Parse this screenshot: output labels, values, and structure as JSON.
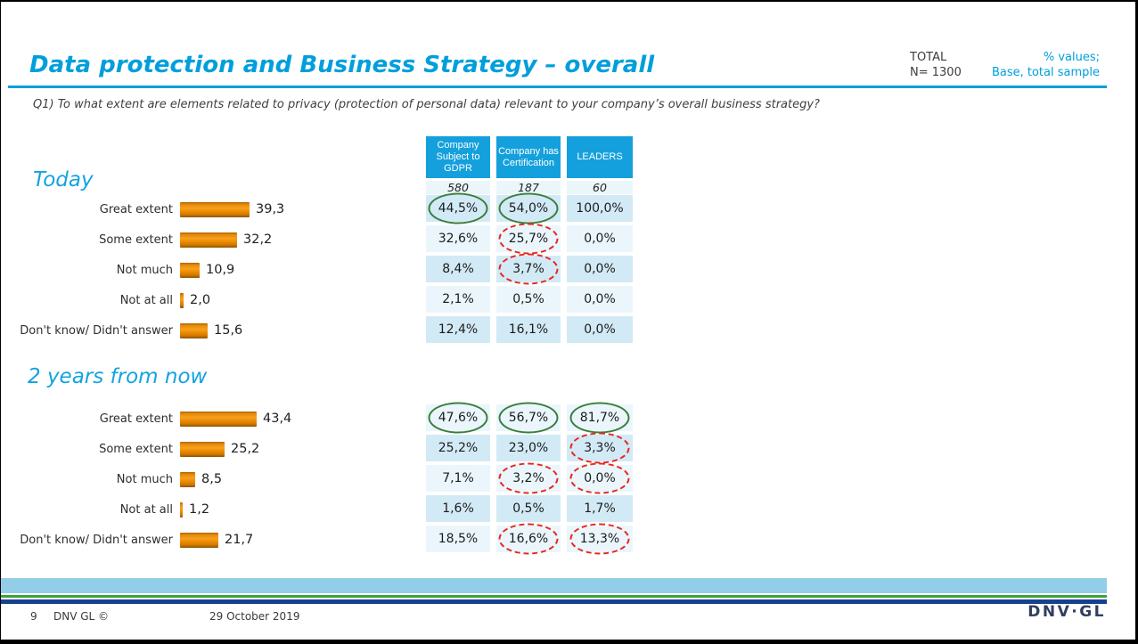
{
  "header": {
    "title": "Data protection and Business Strategy – overall",
    "total_label": "TOTAL",
    "total_value": "N= 1300",
    "note_line1": "% values;",
    "note_line2": "Base, total sample"
  },
  "question": "Q1) To what extent are elements related to privacy (protection of personal data) relevant to your company’s overall business strategy?",
  "columns": [
    {
      "label": "Company Subject to GDPR",
      "base": "580"
    },
    {
      "label": "Company has Certification",
      "base": "187"
    },
    {
      "label": "LEADERS",
      "base": "60"
    }
  ],
  "sections": [
    {
      "title": "Today",
      "rows": [
        {
          "label": "Great extent",
          "bar_display": "39,3",
          "bar_value": 39.3,
          "cells": [
            {
              "text": "44,5%",
              "mark": "green"
            },
            {
              "text": "54,0%",
              "mark": "green"
            },
            {
              "text": "100,0%",
              "mark": null
            }
          ]
        },
        {
          "label": "Some extent",
          "bar_display": "32,2",
          "bar_value": 32.2,
          "cells": [
            {
              "text": "32,6%",
              "mark": null
            },
            {
              "text": "25,7%",
              "mark": "red"
            },
            {
              "text": "0,0%",
              "mark": null
            }
          ]
        },
        {
          "label": "Not much",
          "bar_display": "10,9",
          "bar_value": 10.9,
          "cells": [
            {
              "text": "8,4%",
              "mark": null
            },
            {
              "text": "3,7%",
              "mark": "red"
            },
            {
              "text": "0,0%",
              "mark": null
            }
          ]
        },
        {
          "label": "Not at all",
          "bar_display": "2,0",
          "bar_value": 2.0,
          "cells": [
            {
              "text": "2,1%",
              "mark": null
            },
            {
              "text": "0,5%",
              "mark": null
            },
            {
              "text": "0,0%",
              "mark": null
            }
          ]
        },
        {
          "label": "Don't know/ Didn't answer",
          "bar_display": "15,6",
          "bar_value": 15.6,
          "cells": [
            {
              "text": "12,4%",
              "mark": null
            },
            {
              "text": "16,1%",
              "mark": null
            },
            {
              "text": "0,0%",
              "mark": null
            }
          ]
        }
      ]
    },
    {
      "title": "2 years from now",
      "rows": [
        {
          "label": "Great extent",
          "bar_display": "43,4",
          "bar_value": 43.4,
          "cells": [
            {
              "text": "47,6%",
              "mark": "green"
            },
            {
              "text": "56,7%",
              "mark": "green"
            },
            {
              "text": "81,7%",
              "mark": "green"
            }
          ]
        },
        {
          "label": "Some extent",
          "bar_display": "25,2",
          "bar_value": 25.2,
          "cells": [
            {
              "text": "25,2%",
              "mark": null
            },
            {
              "text": "23,0%",
              "mark": null
            },
            {
              "text": "3,3%",
              "mark": "red"
            }
          ]
        },
        {
          "label": "Not much",
          "bar_display": "8,5",
          "bar_value": 8.5,
          "cells": [
            {
              "text": "7,1%",
              "mark": null
            },
            {
              "text": "3,2%",
              "mark": "red"
            },
            {
              "text": "0,0%",
              "mark": "red"
            }
          ]
        },
        {
          "label": "Not at all",
          "bar_display": "1,2",
          "bar_value": 1.2,
          "cells": [
            {
              "text": "1,6%",
              "mark": null
            },
            {
              "text": "0,5%",
              "mark": null
            },
            {
              "text": "1,7%",
              "mark": null
            }
          ]
        },
        {
          "label": "Don't know/ Didn't answer",
          "bar_display": "21,7",
          "bar_value": 21.7,
          "cells": [
            {
              "text": "18,5%",
              "mark": null
            },
            {
              "text": "16,6%",
              "mark": "red"
            },
            {
              "text": "13,3%",
              "mark": "red"
            }
          ]
        }
      ]
    }
  ],
  "footer": {
    "page_number": "9",
    "copyright": "DNV GL ©",
    "date": "29 October 2019",
    "logo": "DNV·GL"
  },
  "colors": {
    "accent_blue": "#009FDB",
    "section_blue": "#14A3E1",
    "header_cell_blue": "#14A0DC",
    "cell_dark": "#D2EAF6",
    "cell_light": "#EAF6FC",
    "bar_orange": "#EF8C00",
    "ellipse_green": "#3B7D3B",
    "ellipse_red": "#E8251B",
    "band_sky": "#93CEE8",
    "band_green": "#3FA037",
    "band_navy": "#16418F",
    "logo_navy": "#303F60"
  },
  "chart_data": [
    {
      "type": "bar",
      "orientation": "horizontal",
      "title": "Today",
      "unit": "%",
      "categories": [
        "Great extent",
        "Some extent",
        "Not much",
        "Not at all",
        "Don't know/ Didn't answer"
      ],
      "series": [
        {
          "name": "TOTAL (N=1300)",
          "values": [
            39.3,
            32.2,
            10.9,
            2.0,
            15.6
          ]
        },
        {
          "name": "Company Subject to GDPR (580)",
          "values": [
            44.5,
            32.6,
            8.4,
            2.1,
            12.4
          ]
        },
        {
          "name": "Company has Certification (187)",
          "values": [
            54.0,
            25.7,
            3.7,
            0.5,
            16.1
          ]
        },
        {
          "name": "LEADERS (60)",
          "values": [
            100.0,
            0.0,
            0.0,
            0.0,
            0.0
          ]
        }
      ],
      "annotations": "green solid ellipses mark significantly high values; red dashed ellipses mark significantly low values"
    },
    {
      "type": "bar",
      "orientation": "horizontal",
      "title": "2 years from now",
      "unit": "%",
      "categories": [
        "Great extent",
        "Some extent",
        "Not much",
        "Not at all",
        "Don't know/ Didn't answer"
      ],
      "series": [
        {
          "name": "TOTAL (N=1300)",
          "values": [
            43.4,
            25.2,
            8.5,
            1.2,
            21.7
          ]
        },
        {
          "name": "Company Subject to GDPR (580)",
          "values": [
            47.6,
            25.2,
            7.1,
            1.6,
            18.5
          ]
        },
        {
          "name": "Company has Certification (187)",
          "values": [
            56.7,
            23.0,
            3.2,
            0.5,
            16.6
          ]
        },
        {
          "name": "LEADERS (60)",
          "values": [
            81.7,
            3.3,
            0.0,
            1.7,
            13.3
          ]
        }
      ],
      "annotations": "green solid ellipses mark significantly high values; red dashed ellipses mark significantly low values"
    }
  ]
}
